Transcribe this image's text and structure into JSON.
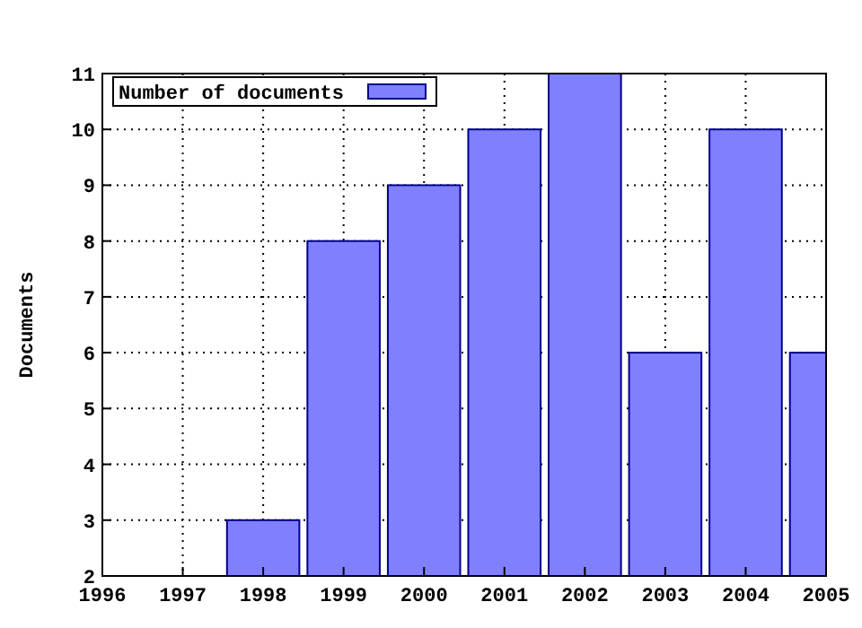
{
  "chart_data": {
    "type": "bar",
    "ylabel": "Documents",
    "x": [
      1998,
      1999,
      2000,
      2001,
      2002,
      2003,
      2004,
      2005
    ],
    "series": [
      {
        "name": "Number of documents",
        "color": "#8080ff",
        "values": [
          3,
          8,
          9,
          10,
          11,
          6,
          10,
          6
        ]
      }
    ],
    "xlim": [
      1996,
      2005
    ],
    "xticks": [
      1996,
      1997,
      1998,
      1999,
      2000,
      2001,
      2002,
      2003,
      2004,
      2005
    ],
    "ylim": [
      2,
      11
    ],
    "yticks": [
      2,
      3,
      4,
      5,
      6,
      7,
      8,
      9,
      10,
      11
    ],
    "grid": true,
    "legend": "top left"
  }
}
